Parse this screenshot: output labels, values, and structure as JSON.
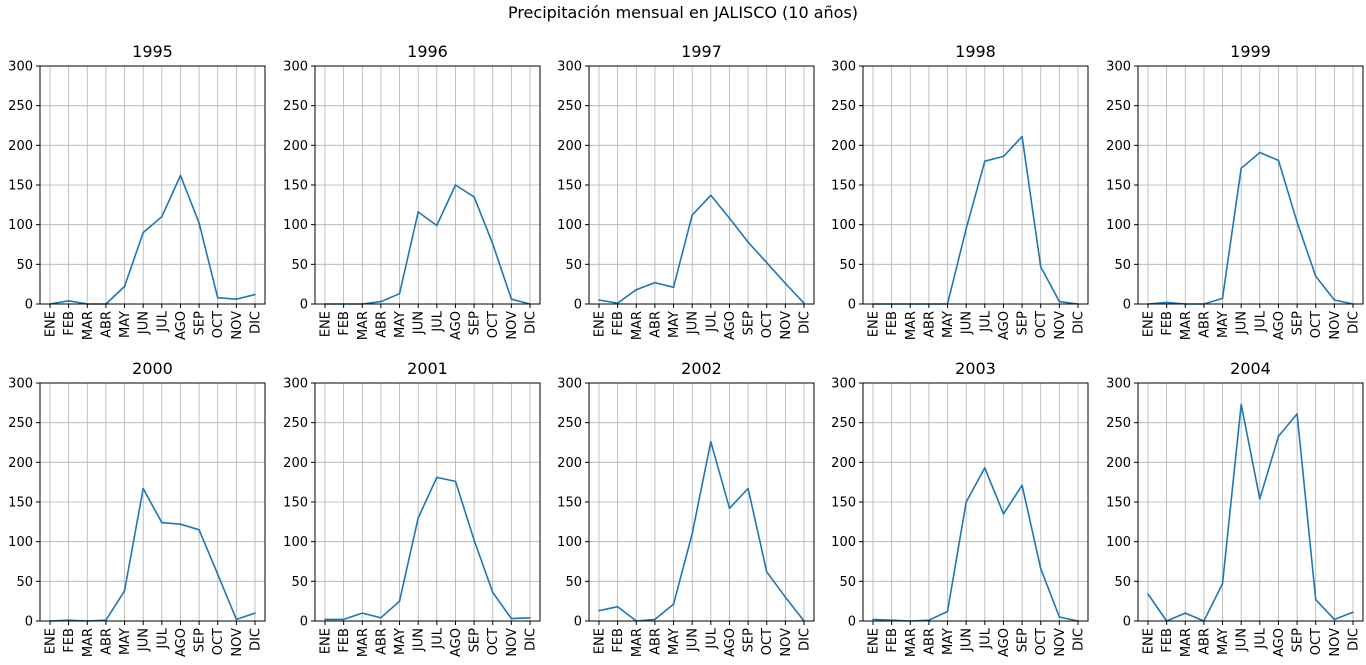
{
  "figure_title": "Precipitación mensual en JALISCO (10 años)",
  "colors": {
    "line": "#1f77b4",
    "grid": "#b0b0b0",
    "axis": "#000000"
  },
  "chart_data": [
    {
      "type": "line",
      "title": "1995",
      "categories": [
        "ENE",
        "FEB",
        "MAR",
        "ABR",
        "MAY",
        "JUN",
        "JUL",
        "AGO",
        "SEP",
        "OCT",
        "NOV",
        "DIC"
      ],
      "values": [
        0,
        4,
        0,
        0,
        22,
        90,
        110,
        162,
        102,
        8,
        6,
        12
      ],
      "yticks": [
        0,
        50,
        100,
        150,
        200,
        250,
        300
      ],
      "ylim": [
        0,
        300
      ],
      "grid": true
    },
    {
      "type": "line",
      "title": "1996",
      "categories": [
        "ENE",
        "FEB",
        "MAR",
        "ABR",
        "MAY",
        "JUN",
        "JUL",
        "AGO",
        "SEP",
        "OCT",
        "NOV",
        "DIC"
      ],
      "values": [
        0,
        0,
        0,
        3,
        13,
        116,
        99,
        150,
        135,
        76,
        6,
        0
      ],
      "yticks": [
        0,
        50,
        100,
        150,
        200,
        250,
        300
      ],
      "ylim": [
        0,
        300
      ],
      "grid": true
    },
    {
      "type": "line",
      "title": "1997",
      "categories": [
        "ENE",
        "FEB",
        "MAR",
        "ABR",
        "MAY",
        "JUN",
        "JUL",
        "AGO",
        "SEP",
        "OCT",
        "NOV",
        "DIC"
      ],
      "values": [
        5,
        1,
        18,
        27,
        21,
        112,
        137,
        108,
        78,
        52,
        26,
        1
      ],
      "yticks": [
        0,
        50,
        100,
        150,
        200,
        250,
        300
      ],
      "ylim": [
        0,
        300
      ],
      "grid": true
    },
    {
      "type": "line",
      "title": "1998",
      "categories": [
        "ENE",
        "FEB",
        "MAR",
        "ABR",
        "MAY",
        "JUN",
        "JUL",
        "AGO",
        "SEP",
        "OCT",
        "NOV",
        "DIC"
      ],
      "values": [
        0,
        0,
        0,
        0,
        0,
        95,
        180,
        186,
        211,
        47,
        3,
        0
      ],
      "yticks": [
        0,
        50,
        100,
        150,
        200,
        250,
        300
      ],
      "ylim": [
        0,
        300
      ],
      "grid": true
    },
    {
      "type": "line",
      "title": "1999",
      "categories": [
        "ENE",
        "FEB",
        "MAR",
        "ABR",
        "MAY",
        "JUN",
        "JUL",
        "AGO",
        "SEP",
        "OCT",
        "NOV",
        "DIC"
      ],
      "values": [
        0,
        2,
        0,
        0,
        7,
        171,
        191,
        181,
        103,
        35,
        5,
        0
      ],
      "yticks": [
        0,
        50,
        100,
        150,
        200,
        250,
        300
      ],
      "ylim": [
        0,
        300
      ],
      "grid": true
    },
    {
      "type": "line",
      "title": "2000",
      "categories": [
        "ENE",
        "FEB",
        "MAR",
        "ABR",
        "MAY",
        "JUN",
        "JUL",
        "AGO",
        "SEP",
        "OCT",
        "NOV",
        "DIC"
      ],
      "values": [
        0,
        1,
        0,
        1,
        38,
        167,
        124,
        122,
        115,
        59,
        2,
        10
      ],
      "yticks": [
        0,
        50,
        100,
        150,
        200,
        250,
        300
      ],
      "ylim": [
        0,
        300
      ],
      "grid": true
    },
    {
      "type": "line",
      "title": "2001",
      "categories": [
        "ENE",
        "FEB",
        "MAR",
        "ABR",
        "MAY",
        "JUN",
        "JUL",
        "AGO",
        "SEP",
        "OCT",
        "NOV",
        "DIC"
      ],
      "values": [
        2,
        2,
        10,
        4,
        25,
        130,
        181,
        176,
        102,
        36,
        3,
        4
      ],
      "yticks": [
        0,
        50,
        100,
        150,
        200,
        250,
        300
      ],
      "ylim": [
        0,
        300
      ],
      "grid": true
    },
    {
      "type": "line",
      "title": "2002",
      "categories": [
        "ENE",
        "FEB",
        "MAR",
        "ABR",
        "MAY",
        "JUN",
        "JUL",
        "AGO",
        "SEP",
        "OCT",
        "NOV",
        "DIC"
      ],
      "values": [
        13,
        18,
        0,
        2,
        21,
        110,
        226,
        142,
        167,
        62,
        30,
        0
      ],
      "yticks": [
        0,
        50,
        100,
        150,
        200,
        250,
        300
      ],
      "ylim": [
        0,
        300
      ],
      "grid": true
    },
    {
      "type": "line",
      "title": "2003",
      "categories": [
        "ENE",
        "FEB",
        "MAR",
        "ABR",
        "MAY",
        "JUN",
        "JUL",
        "AGO",
        "SEP",
        "OCT",
        "NOV",
        "DIC"
      ],
      "values": [
        2,
        1,
        0,
        1,
        12,
        150,
        193,
        135,
        171,
        66,
        5,
        0
      ],
      "yticks": [
        0,
        50,
        100,
        150,
        200,
        250,
        300
      ],
      "ylim": [
        0,
        300
      ],
      "grid": true
    },
    {
      "type": "line",
      "title": "2004",
      "categories": [
        "ENE",
        "FEB",
        "MAR",
        "ABR",
        "MAY",
        "JUN",
        "JUL",
        "AGO",
        "SEP",
        "OCT",
        "NOV",
        "DIC"
      ],
      "values": [
        34,
        0,
        10,
        0,
        47,
        273,
        154,
        233,
        261,
        27,
        2,
        11
      ],
      "yticks": [
        0,
        50,
        100,
        150,
        200,
        250,
        300
      ],
      "ylim": [
        0,
        300
      ],
      "grid": true
    }
  ]
}
